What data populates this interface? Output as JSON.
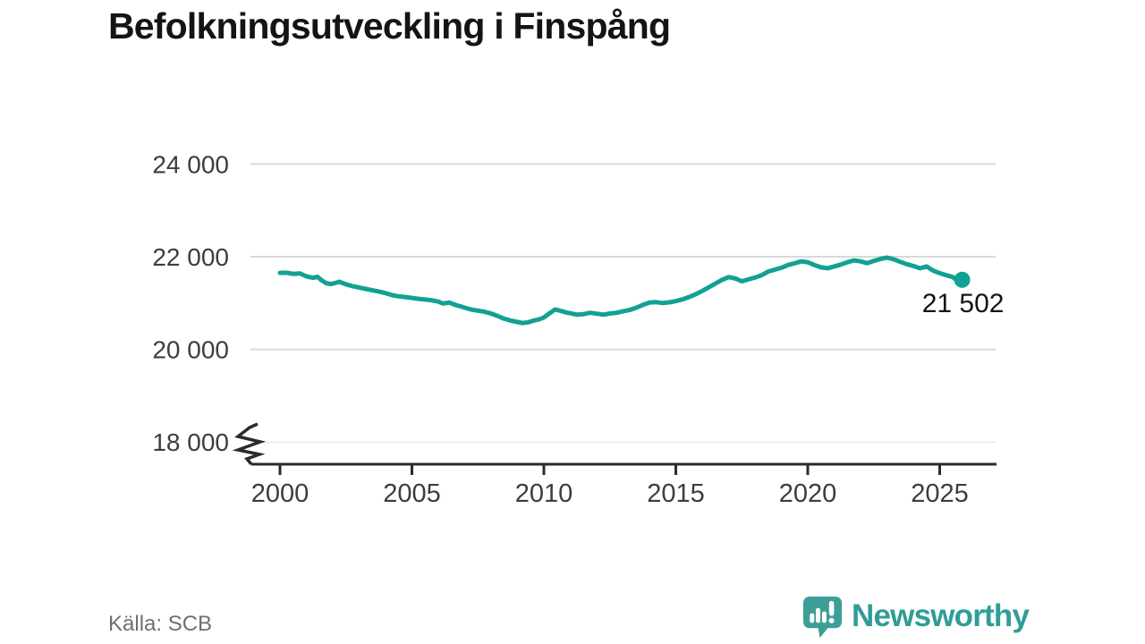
{
  "title": "Befolkningsutveckling i Finspång",
  "source": "Källa: SCB",
  "branding": {
    "wordmark": "Newsworthy"
  },
  "colors": {
    "line": "#12a192",
    "grid": "#d9d9d9",
    "grid_faint": "#ededed",
    "axis": "#2b2b2b",
    "tick_text": "#3d3d3d",
    "title_text": "#141414",
    "value_label_text": "#141414",
    "source_text": "#6d7078",
    "brand_teal": "#2f9d96",
    "brand_icon": "#3d9e97"
  },
  "chart_data": {
    "type": "line",
    "title": "Befolkningsutveckling i Finspång",
    "xlabel": "",
    "ylabel": "",
    "grid": "horizontal",
    "legend": "none",
    "axis_break": true,
    "xlim": [
      1998.9,
      2027.2
    ],
    "ylim": [
      17600,
      24300
    ],
    "x_ticks": [
      2000,
      2005,
      2010,
      2015,
      2020,
      2025
    ],
    "y_ticks": [
      {
        "value": 24000,
        "label": "24 000",
        "faint": false
      },
      {
        "value": 22000,
        "label": "22 000",
        "faint": false
      },
      {
        "value": 20000,
        "label": "20 000",
        "faint": false
      },
      {
        "value": 18000,
        "label": "18 000",
        "faint": true
      }
    ],
    "end_point": {
      "x": 2025.85,
      "y": 21502,
      "label": "21 502"
    },
    "series": [
      {
        "name": "",
        "points": [
          [
            2000.0,
            21650
          ],
          [
            2000.25,
            21655
          ],
          [
            2000.5,
            21630
          ],
          [
            2000.75,
            21640
          ],
          [
            2001.0,
            21575
          ],
          [
            2001.25,
            21545
          ],
          [
            2001.42,
            21565
          ],
          [
            2001.58,
            21490
          ],
          [
            2001.75,
            21430
          ],
          [
            2001.92,
            21410
          ],
          [
            2002.08,
            21430
          ],
          [
            2002.25,
            21460
          ],
          [
            2002.42,
            21420
          ],
          [
            2002.58,
            21390
          ],
          [
            2002.75,
            21365
          ],
          [
            2003.0,
            21335
          ],
          [
            2003.25,
            21305
          ],
          [
            2003.5,
            21275
          ],
          [
            2003.75,
            21250
          ],
          [
            2004.0,
            21215
          ],
          [
            2004.25,
            21170
          ],
          [
            2004.5,
            21145
          ],
          [
            2004.75,
            21130
          ],
          [
            2005.0,
            21110
          ],
          [
            2005.25,
            21090
          ],
          [
            2005.5,
            21075
          ],
          [
            2005.75,
            21060
          ],
          [
            2006.0,
            21030
          ],
          [
            2006.17,
            20990
          ],
          [
            2006.42,
            21010
          ],
          [
            2006.67,
            20955
          ],
          [
            2006.83,
            20930
          ],
          [
            2007.0,
            20900
          ],
          [
            2007.25,
            20860
          ],
          [
            2007.5,
            20835
          ],
          [
            2007.75,
            20810
          ],
          [
            2008.0,
            20775
          ],
          [
            2008.25,
            20720
          ],
          [
            2008.5,
            20660
          ],
          [
            2008.75,
            20620
          ],
          [
            2009.0,
            20590
          ],
          [
            2009.17,
            20570
          ],
          [
            2009.42,
            20585
          ],
          [
            2009.58,
            20615
          ],
          [
            2009.83,
            20650
          ],
          [
            2010.0,
            20690
          ],
          [
            2010.17,
            20760
          ],
          [
            2010.42,
            20860
          ],
          [
            2010.58,
            20840
          ],
          [
            2010.83,
            20800
          ],
          [
            2011.0,
            20780
          ],
          [
            2011.25,
            20750
          ],
          [
            2011.5,
            20760
          ],
          [
            2011.75,
            20790
          ],
          [
            2012.0,
            20770
          ],
          [
            2012.25,
            20750
          ],
          [
            2012.5,
            20775
          ],
          [
            2012.75,
            20790
          ],
          [
            2013.0,
            20820
          ],
          [
            2013.25,
            20850
          ],
          [
            2013.5,
            20900
          ],
          [
            2013.75,
            20960
          ],
          [
            2014.0,
            21010
          ],
          [
            2014.25,
            21020
          ],
          [
            2014.5,
            21000
          ],
          [
            2014.75,
            21015
          ],
          [
            2015.0,
            21040
          ],
          [
            2015.25,
            21080
          ],
          [
            2015.5,
            21130
          ],
          [
            2015.75,
            21190
          ],
          [
            2016.0,
            21260
          ],
          [
            2016.25,
            21340
          ],
          [
            2016.5,
            21420
          ],
          [
            2016.75,
            21500
          ],
          [
            2017.0,
            21560
          ],
          [
            2017.25,
            21530
          ],
          [
            2017.5,
            21470
          ],
          [
            2017.75,
            21510
          ],
          [
            2018.0,
            21550
          ],
          [
            2018.25,
            21600
          ],
          [
            2018.5,
            21680
          ],
          [
            2018.75,
            21720
          ],
          [
            2019.0,
            21760
          ],
          [
            2019.25,
            21820
          ],
          [
            2019.5,
            21860
          ],
          [
            2019.75,
            21900
          ],
          [
            2020.0,
            21880
          ],
          [
            2020.25,
            21820
          ],
          [
            2020.5,
            21770
          ],
          [
            2020.75,
            21750
          ],
          [
            2021.0,
            21790
          ],
          [
            2021.25,
            21830
          ],
          [
            2021.5,
            21880
          ],
          [
            2021.75,
            21920
          ],
          [
            2022.0,
            21900
          ],
          [
            2022.25,
            21860
          ],
          [
            2022.5,
            21910
          ],
          [
            2022.75,
            21950
          ],
          [
            2023.0,
            21980
          ],
          [
            2023.25,
            21945
          ],
          [
            2023.5,
            21890
          ],
          [
            2023.75,
            21840
          ],
          [
            2024.0,
            21800
          ],
          [
            2024.25,
            21750
          ],
          [
            2024.5,
            21790
          ],
          [
            2024.75,
            21700
          ],
          [
            2025.0,
            21645
          ],
          [
            2025.25,
            21600
          ],
          [
            2025.5,
            21560
          ],
          [
            2025.67,
            21480
          ],
          [
            2025.77,
            21400
          ],
          [
            2025.85,
            21502
          ]
        ]
      }
    ]
  }
}
